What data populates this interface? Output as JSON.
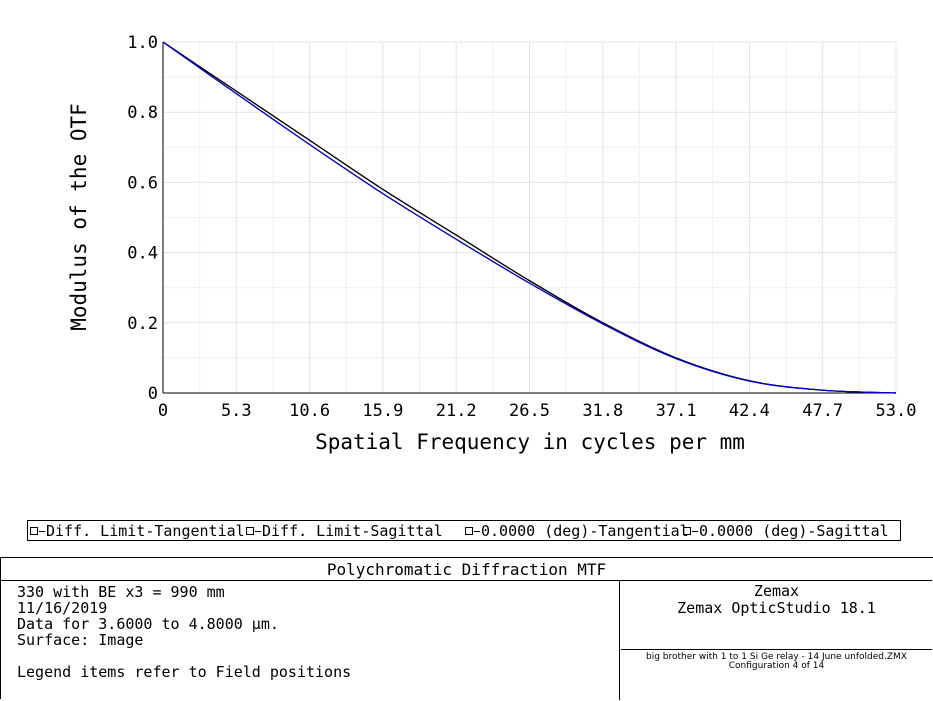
{
  "chart_data": {
    "type": "line",
    "xlabel": "Spatial Frequency in cycles per mm",
    "ylabel": "Modulus of the OTF",
    "xlim": [
      0,
      53.0
    ],
    "ylim": [
      0,
      1.0
    ],
    "x_ticks": [
      "0",
      "5.3",
      "10.6",
      "15.9",
      "21.2",
      "26.5",
      "31.8",
      "37.1",
      "42.4",
      "47.7",
      "53.0"
    ],
    "y_ticks": [
      "0",
      "0.2",
      "0.4",
      "0.6",
      "0.8",
      "1.0"
    ],
    "grid": true,
    "x": [
      0,
      5.3,
      10.6,
      15.9,
      21.2,
      26.5,
      31.8,
      37.1,
      42.4,
      47.7,
      53.0
    ],
    "series": [
      {
        "name": "Diff. Limit-Tangential",
        "color": "#000000",
        "values": [
          1.0,
          0.86,
          0.72,
          0.58,
          0.45,
          0.32,
          0.2,
          0.1,
          0.035,
          0.008,
          0.0
        ]
      },
      {
        "name": "Diff. Limit-Sagittal",
        "color": "#000000",
        "values": [
          1.0,
          0.86,
          0.72,
          0.58,
          0.45,
          0.32,
          0.2,
          0.1,
          0.035,
          0.008,
          0.0
        ]
      },
      {
        "name": "0.0000 (deg)-Tangential",
        "color": "#0000cc",
        "values": [
          1.0,
          0.853,
          0.708,
          0.568,
          0.438,
          0.313,
          0.197,
          0.098,
          0.034,
          0.008,
          0.0
        ]
      },
      {
        "name": "0.0000 (deg)-Sagittal",
        "color": "#0000cc",
        "values": [
          1.0,
          0.853,
          0.708,
          0.568,
          0.438,
          0.313,
          0.197,
          0.098,
          0.034,
          0.008,
          0.0
        ]
      }
    ]
  },
  "legend": {
    "items": [
      "Diff. Limit-Tangential",
      "Diff. Limit-Sagittal",
      "0.0000 (deg)-Tangential",
      "0.0000 (deg)-Sagittal"
    ]
  },
  "info": {
    "title": "Polychromatic Diffraction MTF",
    "lines": [
      "330 with BE x3 = 990 mm",
      "11/16/2019",
      "Data for 3.6000 to 4.8000 µm.",
      "Surface: Image",
      "",
      "Legend items refer to Field positions"
    ],
    "company": "Zemax",
    "product": "Zemax OpticStudio 18.1",
    "file": "big brother with 1 to 1 Si Ge relay - 14 June unfolded.ZMX",
    "config": "Configuration 4 of 14"
  }
}
